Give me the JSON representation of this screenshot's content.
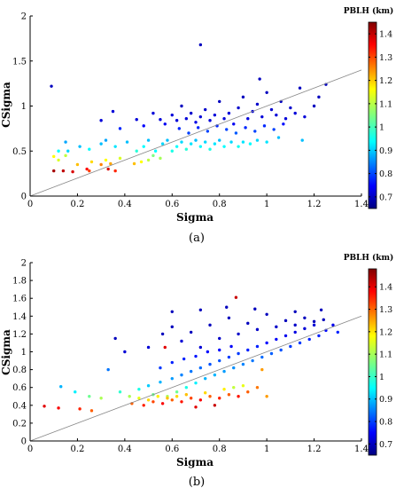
{
  "chart_data": [
    {
      "panel": "(a)",
      "type": "scatter",
      "xlabel": "Sigma",
      "ylabel": "CSigma",
      "xlim": [
        0,
        1.4
      ],
      "ylim": [
        0,
        2
      ],
      "xticks": [
        "0",
        "0.2",
        "0.4",
        "0.6",
        "0.8",
        "1",
        "1.2",
        "1.4"
      ],
      "yticks": [
        "0",
        "0.5",
        "1",
        "1.5",
        "2"
      ],
      "colorbar": {
        "title": "PBLH (km)",
        "range": [
          0.65,
          1.45
        ],
        "ticks": [
          "0.7",
          "0.8",
          "0.9",
          "1",
          "1.1",
          "1.2",
          "1.3",
          "1.4"
        ],
        "colormap": "jet"
      },
      "reference_line": {
        "x": [
          0,
          1.4
        ],
        "y": [
          0,
          1.4
        ]
      },
      "points": [
        [
          0.09,
          1.22,
          0.7
        ],
        [
          0.72,
          1.68,
          0.7
        ],
        [
          0.97,
          1.3,
          0.7
        ],
        [
          1.22,
          1.1,
          0.7
        ],
        [
          1.2,
          1.0,
          0.7
        ],
        [
          1.25,
          1.24,
          0.7
        ],
        [
          0.1,
          0.28,
          1.42
        ],
        [
          0.14,
          0.28,
          1.4
        ],
        [
          0.18,
          0.27,
          1.38
        ],
        [
          0.24,
          0.3,
          1.35
        ],
        [
          0.25,
          0.28,
          1.3
        ],
        [
          0.33,
          0.3,
          1.38
        ],
        [
          0.36,
          0.28,
          1.32
        ],
        [
          0.1,
          0.44,
          1.15
        ],
        [
          0.12,
          0.4,
          1.12
        ],
        [
          0.15,
          0.45,
          1.1
        ],
        [
          0.2,
          0.35,
          1.2
        ],
        [
          0.26,
          0.38,
          1.18
        ],
        [
          0.3,
          0.35,
          1.25
        ],
        [
          0.32,
          0.4,
          1.15
        ],
        [
          0.34,
          0.36,
          1.22
        ],
        [
          0.38,
          0.42,
          1.12
        ],
        [
          0.44,
          0.36,
          1.2
        ],
        [
          0.47,
          0.38,
          1.15
        ],
        [
          0.5,
          0.4,
          1.1
        ],
        [
          0.52,
          0.45,
          1.05
        ],
        [
          0.55,
          0.42,
          1.08
        ],
        [
          0.12,
          0.5,
          0.95
        ],
        [
          0.16,
          0.5,
          0.92
        ],
        [
          0.15,
          0.6,
          0.88
        ],
        [
          0.21,
          0.55,
          0.9
        ],
        [
          0.25,
          0.52,
          0.95
        ],
        [
          0.3,
          0.58,
          0.9
        ],
        [
          0.32,
          0.62,
          0.88
        ],
        [
          0.36,
          0.55,
          0.93
        ],
        [
          0.41,
          0.6,
          0.9
        ],
        [
          0.45,
          0.5,
          0.98
        ],
        [
          0.48,
          0.55,
          0.95
        ],
        [
          0.5,
          0.62,
          0.9
        ],
        [
          0.53,
          0.5,
          0.95
        ],
        [
          0.56,
          0.58,
          0.92
        ],
        [
          0.58,
          0.62,
          0.9
        ],
        [
          0.6,
          0.5,
          0.97
        ],
        [
          0.62,
          0.55,
          0.95
        ],
        [
          0.64,
          0.6,
          0.92
        ],
        [
          0.66,
          0.52,
          0.98
        ],
        [
          0.68,
          0.58,
          0.93
        ],
        [
          0.7,
          0.62,
          0.9
        ],
        [
          0.72,
          0.55,
          0.95
        ],
        [
          0.74,
          0.6,
          0.92
        ],
        [
          0.76,
          0.52,
          0.97
        ],
        [
          0.78,
          0.58,
          0.93
        ],
        [
          0.8,
          0.62,
          0.9
        ],
        [
          0.82,
          0.55,
          0.95
        ],
        [
          0.85,
          0.6,
          0.92
        ],
        [
          0.88,
          0.55,
          0.96
        ],
        [
          0.9,
          0.6,
          0.93
        ],
        [
          0.93,
          0.58,
          0.95
        ],
        [
          0.96,
          0.62,
          0.92
        ],
        [
          1.0,
          0.6,
          0.93
        ],
        [
          1.05,
          0.65,
          0.9
        ],
        [
          1.15,
          0.62,
          0.9
        ],
        [
          0.3,
          0.84,
          0.72
        ],
        [
          0.35,
          0.94,
          0.72
        ],
        [
          0.38,
          0.75,
          0.78
        ],
        [
          0.45,
          0.85,
          0.72
        ],
        [
          0.48,
          0.78,
          0.75
        ],
        [
          0.52,
          0.92,
          0.72
        ],
        [
          0.55,
          0.85,
          0.72
        ],
        [
          0.57,
          0.8,
          0.74
        ],
        [
          0.6,
          0.9,
          0.72
        ],
        [
          0.62,
          0.84,
          0.72
        ],
        [
          0.64,
          1.0,
          0.7
        ],
        [
          0.66,
          0.86,
          0.72
        ],
        [
          0.68,
          0.92,
          0.71
        ],
        [
          0.7,
          0.82,
          0.73
        ],
        [
          0.72,
          0.88,
          0.72
        ],
        [
          0.74,
          0.96,
          0.71
        ],
        [
          0.76,
          0.84,
          0.72
        ],
        [
          0.78,
          0.9,
          0.72
        ],
        [
          0.8,
          1.05,
          0.7
        ],
        [
          0.82,
          0.86,
          0.72
        ],
        [
          0.84,
          0.92,
          0.72
        ],
        [
          0.86,
          0.8,
          0.74
        ],
        [
          0.88,
          0.98,
          0.71
        ],
        [
          0.9,
          1.1,
          0.7
        ],
        [
          0.92,
          0.86,
          0.72
        ],
        [
          0.94,
          0.94,
          0.72
        ],
        [
          0.96,
          1.02,
          0.71
        ],
        [
          0.98,
          0.88,
          0.72
        ],
        [
          1.0,
          1.15,
          0.7
        ],
        [
          1.02,
          0.96,
          0.71
        ],
        [
          1.04,
          0.9,
          0.72
        ],
        [
          1.06,
          1.05,
          0.7
        ],
        [
          1.08,
          0.86,
          0.72
        ],
        [
          1.1,
          0.98,
          0.71
        ],
        [
          1.12,
          0.92,
          0.72
        ],
        [
          1.14,
          1.2,
          0.7
        ],
        [
          1.16,
          0.88,
          0.72
        ],
        [
          0.63,
          0.75,
          0.78
        ],
        [
          0.67,
          0.7,
          0.8
        ],
        [
          0.71,
          0.76,
          0.78
        ],
        [
          0.75,
          0.72,
          0.8
        ],
        [
          0.79,
          0.78,
          0.78
        ],
        [
          0.83,
          0.74,
          0.8
        ],
        [
          0.87,
          0.7,
          0.82
        ],
        [
          0.91,
          0.76,
          0.78
        ],
        [
          0.95,
          0.72,
          0.8
        ],
        [
          0.99,
          0.78,
          0.78
        ],
        [
          1.03,
          0.74,
          0.8
        ],
        [
          1.07,
          0.8,
          0.76
        ]
      ]
    },
    {
      "panel": "(b)",
      "type": "scatter",
      "xlabel": "Sigma",
      "ylabel": "CSigma",
      "xlim": [
        0,
        1.4
      ],
      "ylim": [
        0,
        2
      ],
      "xticks": [
        "0",
        "0.2",
        "0.4",
        "0.6",
        "0.8",
        "1",
        "1.2",
        "1.4"
      ],
      "yticks": [
        "0",
        "0.2",
        "0.4",
        "0.6",
        "0.8",
        "1",
        "1.2",
        "1.4",
        "1.6",
        "1.8",
        "2"
      ],
      "colorbar": {
        "title": "PBLH (km)",
        "range": [
          0.65,
          1.48
        ],
        "ticks": [
          "0.7",
          "0.8",
          "0.9",
          "1",
          "1.1",
          "1.2",
          "1.3",
          "1.4"
        ],
        "colormap": "jet"
      },
      "reference_line": {
        "x": [
          0,
          1.4
        ],
        "y": [
          0,
          1.4
        ]
      },
      "points": [
        [
          0.06,
          0.39,
          1.4
        ],
        [
          0.12,
          0.37,
          1.38
        ],
        [
          0.21,
          0.36,
          1.35
        ],
        [
          0.26,
          0.34,
          1.3
        ],
        [
          0.87,
          1.61,
          1.42
        ],
        [
          0.57,
          1.05,
          1.4
        ],
        [
          0.36,
          1.15,
          0.7
        ],
        [
          0.6,
          1.45,
          0.7
        ],
        [
          0.72,
          1.47,
          0.7
        ],
        [
          0.83,
          1.5,
          0.7
        ],
        [
          0.95,
          1.48,
          0.7
        ],
        [
          1.12,
          1.45,
          0.7
        ],
        [
          1.23,
          1.47,
          0.7
        ],
        [
          0.13,
          0.61,
          0.9
        ],
        [
          0.19,
          0.55,
          0.95
        ],
        [
          0.25,
          0.5,
          1.05
        ],
        [
          0.3,
          0.48,
          1.1
        ],
        [
          0.33,
          0.8,
          0.85
        ],
        [
          0.38,
          0.55,
          1.0
        ],
        [
          0.42,
          0.5,
          1.1
        ],
        [
          0.46,
          0.58,
          0.98
        ],
        [
          0.5,
          0.62,
          0.92
        ],
        [
          0.52,
          0.52,
          1.05
        ],
        [
          0.55,
          0.66,
          0.9
        ],
        [
          0.58,
          0.5,
          1.1
        ],
        [
          0.6,
          0.7,
          0.88
        ],
        [
          0.62,
          0.55,
          1.05
        ],
        [
          0.64,
          0.74,
          0.86
        ],
        [
          0.66,
          0.6,
          0.98
        ],
        [
          0.68,
          0.78,
          0.85
        ],
        [
          0.7,
          0.65,
          0.95
        ],
        [
          0.72,
          0.82,
          0.84
        ],
        [
          0.74,
          0.7,
          0.9
        ],
        [
          0.76,
          0.86,
          0.82
        ],
        [
          0.78,
          0.74,
          0.9
        ],
        [
          0.8,
          0.9,
          0.82
        ],
        [
          0.82,
          0.78,
          0.88
        ],
        [
          0.84,
          0.94,
          0.8
        ],
        [
          0.86,
          0.82,
          0.87
        ],
        [
          0.88,
          0.98,
          0.8
        ],
        [
          0.9,
          0.86,
          0.86
        ],
        [
          0.92,
          1.02,
          0.78
        ],
        [
          0.94,
          0.9,
          0.85
        ],
        [
          0.96,
          1.06,
          0.78
        ],
        [
          0.98,
          0.94,
          0.84
        ],
        [
          1.0,
          1.1,
          0.76
        ],
        [
          1.02,
          0.98,
          0.83
        ],
        [
          1.04,
          1.14,
          0.75
        ],
        [
          1.06,
          1.02,
          0.82
        ],
        [
          1.08,
          1.18,
          0.74
        ],
        [
          1.1,
          1.06,
          0.8
        ],
        [
          1.12,
          1.22,
          0.73
        ],
        [
          1.14,
          1.1,
          0.8
        ],
        [
          1.16,
          1.26,
          0.72
        ],
        [
          1.18,
          1.14,
          0.78
        ],
        [
          1.2,
          1.3,
          0.72
        ],
        [
          1.22,
          1.18,
          0.78
        ],
        [
          1.25,
          1.24,
          0.76
        ],
        [
          1.28,
          1.3,
          0.74
        ],
        [
          1.3,
          1.22,
          0.78
        ],
        [
          0.43,
          0.42,
          1.3
        ],
        [
          0.48,
          0.4,
          1.35
        ],
        [
          0.52,
          0.44,
          1.32
        ],
        [
          0.56,
          0.42,
          1.38
        ],
        [
          0.6,
          0.46,
          1.3
        ],
        [
          0.64,
          0.44,
          1.36
        ],
        [
          0.68,
          0.48,
          1.32
        ],
        [
          0.72,
          0.46,
          1.38
        ],
        [
          0.76,
          0.5,
          1.3
        ],
        [
          0.8,
          0.48,
          1.35
        ],
        [
          0.84,
          0.52,
          1.3
        ],
        [
          0.88,
          0.5,
          1.36
        ],
        [
          0.92,
          0.55,
          1.3
        ],
        [
          0.96,
          0.6,
          1.28
        ],
        [
          0.98,
          0.8,
          1.25
        ],
        [
          1.0,
          0.5,
          1.25
        ],
        [
          0.7,
          0.38,
          1.4
        ],
        [
          0.78,
          0.4,
          1.42
        ],
        [
          0.66,
          0.52,
          1.22
        ],
        [
          0.74,
          0.54,
          1.2
        ],
        [
          0.82,
          0.58,
          1.18
        ],
        [
          0.62,
          0.5,
          1.2
        ],
        [
          0.58,
          0.48,
          1.22
        ],
        [
          0.54,
          0.5,
          1.18
        ],
        [
          0.5,
          0.46,
          1.2
        ],
        [
          0.46,
          0.48,
          1.15
        ],
        [
          0.9,
          0.62,
          1.15
        ],
        [
          0.86,
          0.6,
          1.12
        ],
        [
          0.4,
          1.0,
          0.72
        ],
        [
          0.5,
          1.05,
          0.72
        ],
        [
          0.56,
          1.2,
          0.7
        ],
        [
          0.6,
          1.28,
          0.7
        ],
        [
          0.64,
          1.12,
          0.72
        ],
        [
          0.68,
          1.22,
          0.7
        ],
        [
          0.72,
          1.05,
          0.72
        ],
        [
          0.76,
          1.3,
          0.7
        ],
        [
          0.8,
          1.15,
          0.71
        ],
        [
          0.84,
          1.38,
          0.7
        ],
        [
          0.88,
          1.2,
          0.71
        ],
        [
          0.92,
          1.32,
          0.7
        ],
        [
          0.96,
          1.25,
          0.71
        ],
        [
          1.0,
          1.42,
          0.7
        ],
        [
          1.04,
          1.28,
          0.71
        ],
        [
          1.08,
          1.35,
          0.7
        ],
        [
          1.12,
          1.3,
          0.71
        ],
        [
          1.16,
          1.38,
          0.7
        ],
        [
          1.2,
          1.34,
          0.7
        ],
        [
          1.24,
          1.36,
          0.7
        ],
        [
          0.55,
          0.82,
          0.8
        ],
        [
          0.6,
          0.88,
          0.78
        ],
        [
          0.65,
          0.92,
          0.78
        ],
        [
          0.7,
          0.95,
          0.77
        ],
        [
          0.75,
          1.0,
          0.76
        ],
        [
          0.8,
          1.02,
          0.76
        ],
        [
          0.85,
          1.06,
          0.75
        ]
      ]
    }
  ],
  "captions": [
    "(a)",
    "(b)"
  ]
}
